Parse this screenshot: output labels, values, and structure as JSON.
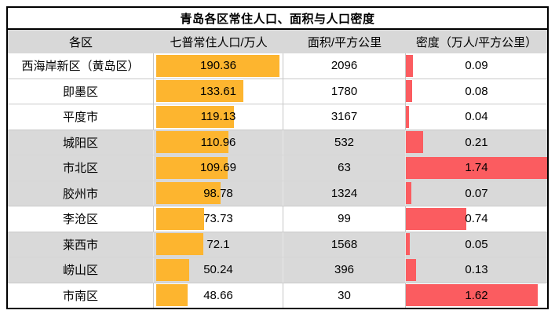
{
  "title": "青岛各区常住人口、面积与人口密度",
  "colors": {
    "population_bar": "#fdb52f",
    "density_bar": "#fb5c60",
    "header_bg": "#d8d8d8",
    "shaded_row_bg": "#d9d9d9",
    "table_border": "#000000"
  },
  "chart_data": {
    "type": "table",
    "title": "青岛各区常住人口、面积与人口密度",
    "columns": [
      "各区",
      "七普常住人口/万人",
      "面积/平方公里",
      "密度（万人/平方公里）"
    ],
    "population_axis": {
      "min": 0,
      "max": 190.36
    },
    "density_axis": {
      "min": 0,
      "max": 1.74
    },
    "rows": [
      {
        "district": "西海岸新区（黄岛区）",
        "population": "190.36",
        "area": "2096",
        "density": "0.09",
        "shaded": false
      },
      {
        "district": "即墨区",
        "population": "133.61",
        "area": "1780",
        "density": "0.08",
        "shaded": false
      },
      {
        "district": "平度市",
        "population": "119.13",
        "area": "3167",
        "density": "0.04",
        "shaded": false
      },
      {
        "district": "城阳区",
        "population": "110.96",
        "area": "532",
        "density": "0.21",
        "shaded": true
      },
      {
        "district": "市北区",
        "population": "109.69",
        "area": "63",
        "density": "1.74",
        "shaded": true
      },
      {
        "district": "胶州市",
        "population": "98.78",
        "area": "1324",
        "density": "0.07",
        "shaded": true
      },
      {
        "district": "李沧区",
        "population": "73.73",
        "area": "99",
        "density": "0.74",
        "shaded": false
      },
      {
        "district": "莱西市",
        "population": "72.1",
        "area": "1568",
        "density": "0.05",
        "shaded": true
      },
      {
        "district": "崂山区",
        "population": "50.24",
        "area": "396",
        "density": "0.13",
        "shaded": true
      },
      {
        "district": "市南区",
        "population": "48.66",
        "area": "30",
        "density": "1.62",
        "shaded": false
      }
    ]
  }
}
